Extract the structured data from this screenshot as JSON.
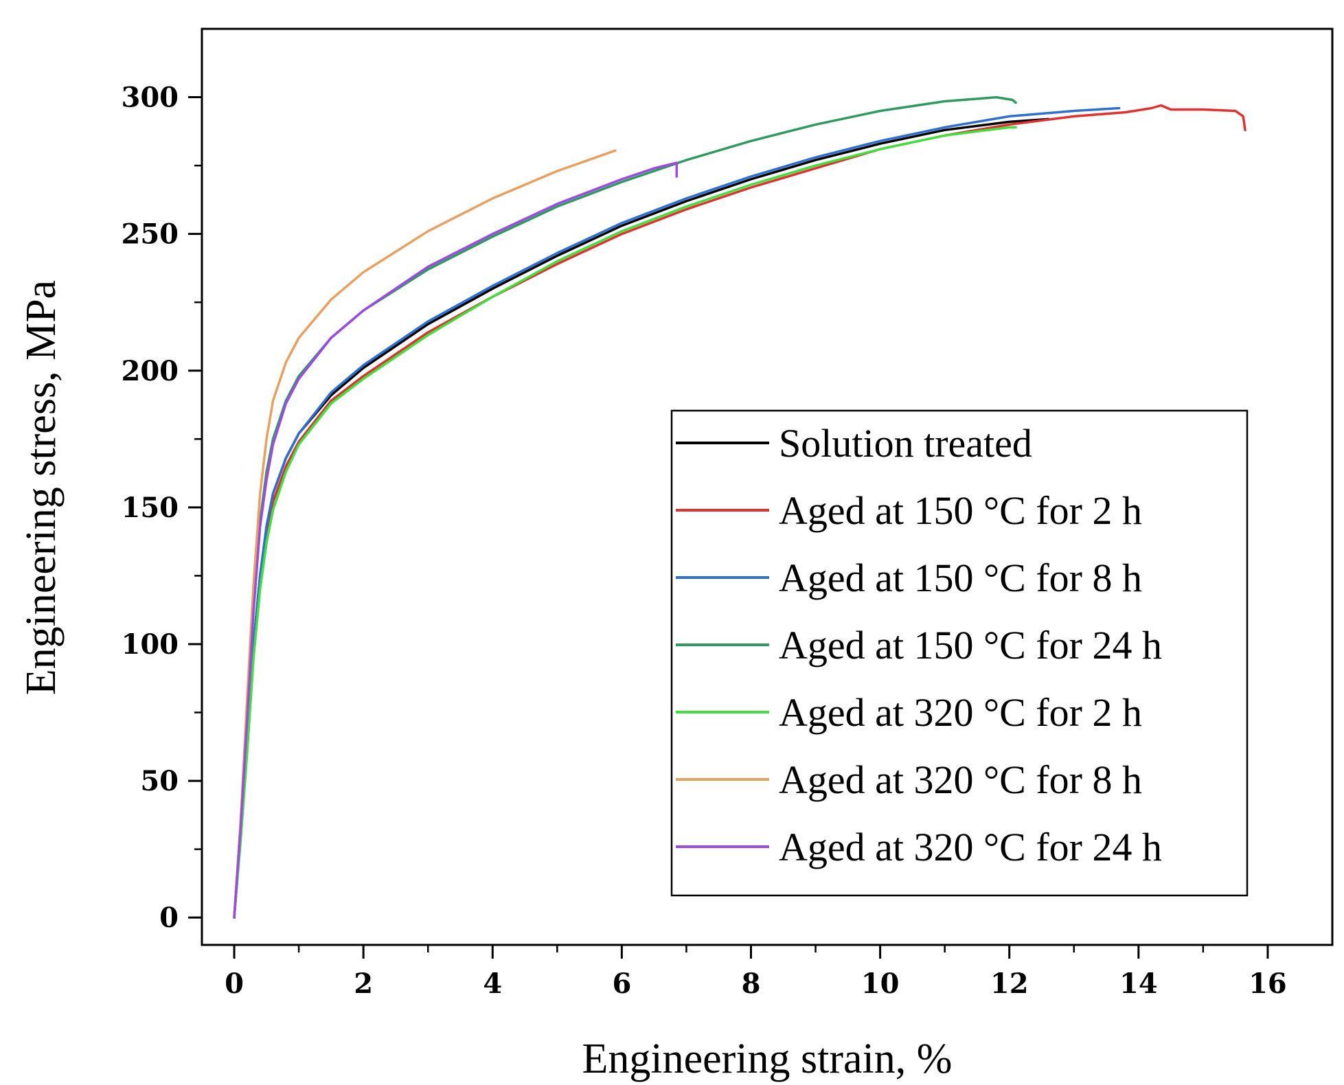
{
  "chart_data": {
    "type": "line",
    "xlabel": "Engineering strain, %",
    "ylabel": "Engineering stress, MPa",
    "xlim": [
      -0.5,
      17
    ],
    "ylim": [
      -10,
      325
    ],
    "xticks": [
      0,
      2,
      4,
      6,
      8,
      10,
      12,
      14,
      16
    ],
    "xtick_labels": [
      "0",
      "2",
      "4",
      "6",
      "8",
      "10",
      "12",
      "14",
      "16"
    ],
    "yticks": [
      0,
      50,
      100,
      150,
      200,
      250,
      300
    ],
    "ytick_labels": [
      "0",
      "50",
      "100",
      "150",
      "200",
      "250",
      "300"
    ],
    "grid": false,
    "legend_position": "bottom-right",
    "series": [
      {
        "name": "Solution treated",
        "color": "#000000",
        "points": [
          [
            0,
            0
          ],
          [
            0.1,
            30
          ],
          [
            0.2,
            65
          ],
          [
            0.3,
            100
          ],
          [
            0.4,
            125
          ],
          [
            0.5,
            143
          ],
          [
            0.6,
            155
          ],
          [
            0.8,
            168
          ],
          [
            1.0,
            177
          ],
          [
            1.5,
            191
          ],
          [
            2,
            201
          ],
          [
            3,
            217
          ],
          [
            4,
            230
          ],
          [
            5,
            242
          ],
          [
            6,
            253
          ],
          [
            7,
            262
          ],
          [
            8,
            270
          ],
          [
            9,
            277
          ],
          [
            10,
            283
          ],
          [
            11,
            288
          ],
          [
            12,
            291
          ],
          [
            12.6,
            292
          ]
        ]
      },
      {
        "name": "Aged at 150 °C for 2 h",
        "color": "#e03030",
        "points": [
          [
            0,
            0
          ],
          [
            0.1,
            30
          ],
          [
            0.2,
            65
          ],
          [
            0.3,
            100
          ],
          [
            0.4,
            122
          ],
          [
            0.5,
            140
          ],
          [
            0.6,
            152
          ],
          [
            0.8,
            165
          ],
          [
            1.0,
            174
          ],
          [
            1.5,
            189
          ],
          [
            2,
            198
          ],
          [
            3,
            214
          ],
          [
            4,
            227
          ],
          [
            5,
            239
          ],
          [
            6,
            250
          ],
          [
            7,
            259
          ],
          [
            8,
            267
          ],
          [
            9,
            274
          ],
          [
            10,
            281
          ],
          [
            11,
            286
          ],
          [
            12,
            290
          ],
          [
            13,
            293
          ],
          [
            13.8,
            294.5
          ],
          [
            14.2,
            296
          ],
          [
            14.35,
            297
          ],
          [
            14.5,
            295.5
          ],
          [
            15,
            295.5
          ],
          [
            15.5,
            295
          ],
          [
            15.62,
            293
          ],
          [
            15.65,
            288
          ]
        ]
      },
      {
        "name": "Aged at 150 °C for 8 h",
        "color": "#2e6fd0",
        "points": [
          [
            0,
            0
          ],
          [
            0.1,
            30
          ],
          [
            0.2,
            65
          ],
          [
            0.3,
            100
          ],
          [
            0.4,
            125
          ],
          [
            0.5,
            143
          ],
          [
            0.6,
            155
          ],
          [
            0.8,
            168
          ],
          [
            1.0,
            177
          ],
          [
            1.5,
            192
          ],
          [
            2,
            202
          ],
          [
            3,
            218
          ],
          [
            4,
            231
          ],
          [
            5,
            243
          ],
          [
            6,
            254
          ],
          [
            7,
            263
          ],
          [
            8,
            271
          ],
          [
            9,
            278
          ],
          [
            10,
            284
          ],
          [
            11,
            289
          ],
          [
            12,
            293
          ],
          [
            13,
            295
          ],
          [
            13.7,
            296
          ]
        ]
      },
      {
        "name": "Aged at 150 °C for 24 h",
        "color": "#2f9a5f",
        "points": [
          [
            0,
            0
          ],
          [
            0.1,
            35
          ],
          [
            0.2,
            75
          ],
          [
            0.3,
            115
          ],
          [
            0.4,
            145
          ],
          [
            0.5,
            163
          ],
          [
            0.6,
            175
          ],
          [
            0.8,
            189
          ],
          [
            1.0,
            198
          ],
          [
            1.5,
            212
          ],
          [
            2,
            222
          ],
          [
            3,
            237
          ],
          [
            4,
            249
          ],
          [
            5,
            260
          ],
          [
            6,
            269
          ],
          [
            7,
            277
          ],
          [
            8,
            284
          ],
          [
            9,
            290
          ],
          [
            10,
            295
          ],
          [
            11,
            298.5
          ],
          [
            11.8,
            300
          ],
          [
            12.05,
            299
          ],
          [
            12.1,
            298
          ]
        ]
      },
      {
        "name": "Aged at 320 °C for 2 h",
        "color": "#40e040",
        "points": [
          [
            0,
            0
          ],
          [
            0.1,
            28
          ],
          [
            0.2,
            60
          ],
          [
            0.3,
            95
          ],
          [
            0.4,
            120
          ],
          [
            0.5,
            137
          ],
          [
            0.6,
            149
          ],
          [
            0.8,
            163
          ],
          [
            1.0,
            173
          ],
          [
            1.5,
            188
          ],
          [
            2,
            197
          ],
          [
            3,
            213
          ],
          [
            4,
            227
          ],
          [
            5,
            240
          ],
          [
            6,
            251
          ],
          [
            7,
            260
          ],
          [
            8,
            268
          ],
          [
            9,
            275
          ],
          [
            10,
            281
          ],
          [
            11,
            286
          ],
          [
            12,
            289
          ],
          [
            12.1,
            289
          ]
        ]
      },
      {
        "name": "Aged at 320 °C for 8 h",
        "color": "#e8a060",
        "points": [
          [
            0,
            0
          ],
          [
            0.1,
            35
          ],
          [
            0.2,
            80
          ],
          [
            0.3,
            122
          ],
          [
            0.4,
            155
          ],
          [
            0.5,
            175
          ],
          [
            0.6,
            189
          ],
          [
            0.8,
            203
          ],
          [
            1.0,
            212
          ],
          [
            1.5,
            226
          ],
          [
            2,
            236
          ],
          [
            3,
            251
          ],
          [
            4,
            263
          ],
          [
            5,
            273
          ],
          [
            5.6,
            278
          ],
          [
            5.9,
            280.5
          ]
        ]
      },
      {
        "name": "Aged at 320 °C for 24 h",
        "color": "#9b4be0",
        "points": [
          [
            0,
            0
          ],
          [
            0.1,
            33
          ],
          [
            0.2,
            72
          ],
          [
            0.3,
            112
          ],
          [
            0.4,
            143
          ],
          [
            0.5,
            160
          ],
          [
            0.6,
            173
          ],
          [
            0.8,
            188
          ],
          [
            1.0,
            197
          ],
          [
            1.5,
            212
          ],
          [
            2,
            222
          ],
          [
            3,
            238
          ],
          [
            4,
            250
          ],
          [
            5,
            261
          ],
          [
            6,
            270
          ],
          [
            6.5,
            274
          ],
          [
            6.85,
            276
          ],
          [
            6.85,
            271
          ]
        ]
      }
    ]
  }
}
